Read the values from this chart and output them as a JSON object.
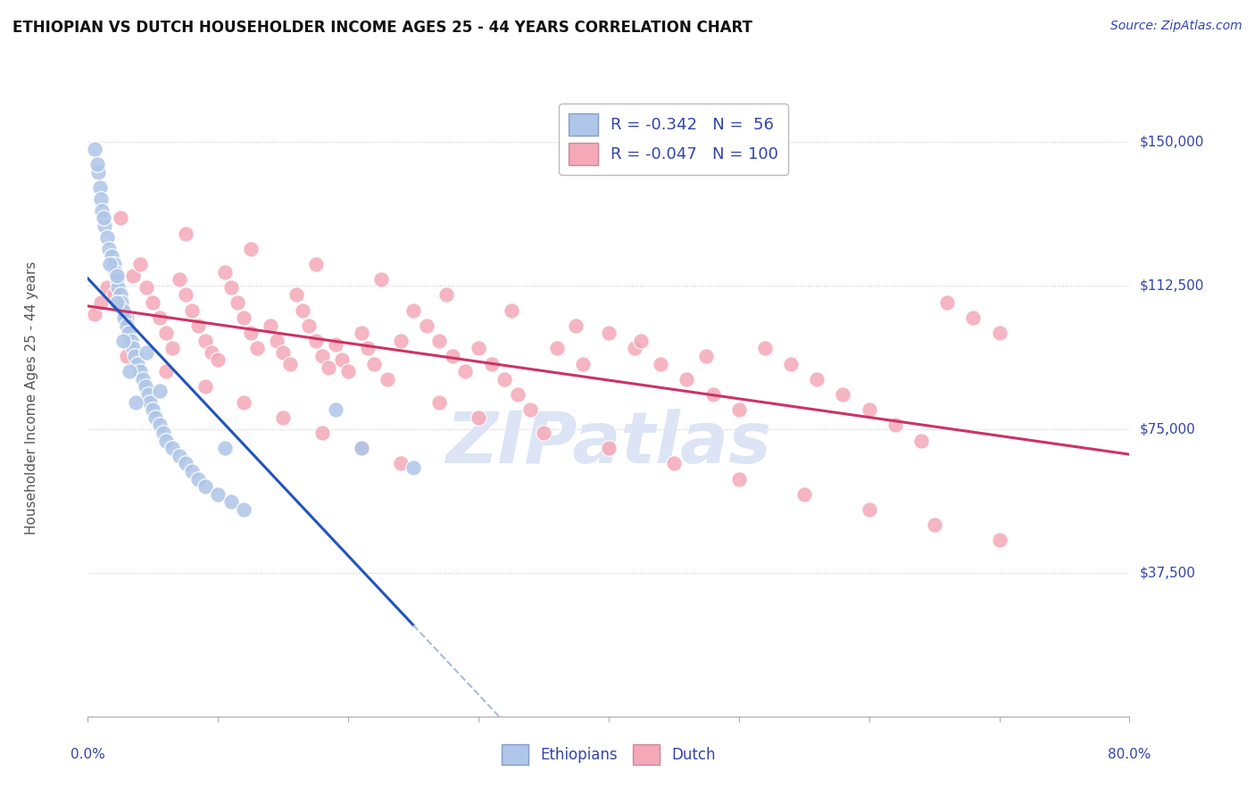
{
  "title": "ETHIOPIAN VS DUTCH HOUSEHOLDER INCOME AGES 25 - 44 YEARS CORRELATION CHART",
  "source": "Source: ZipAtlas.com",
  "ylabel": "Householder Income Ages 25 - 44 years",
  "ytick_labels": [
    "$37,500",
    "$75,000",
    "$112,500",
    "$150,000"
  ],
  "ytick_values": [
    37500,
    75000,
    112500,
    150000
  ],
  "ylim": [
    0,
    162000
  ],
  "xlim": [
    0.0,
    0.8
  ],
  "r_ethiopian": -0.342,
  "n_ethiopian": 56,
  "r_dutch": -0.047,
  "n_dutch": 100,
  "color_ethiopian": "#aec6e8",
  "color_dutch": "#f4a8b8",
  "color_ethiopian_line": "#2255bb",
  "color_dutch_line": "#cc3366",
  "color_dashed_line": "#aabbd8",
  "background_color": "#ffffff",
  "title_color": "#111111",
  "axis_label_color": "#3344aa",
  "watermark_text": "ZIPatlas",
  "watermark_color": "#dde4f5",
  "eth_x": [
    0.005,
    0.008,
    0.009,
    0.01,
    0.011,
    0.013,
    0.015,
    0.016,
    0.018,
    0.02,
    0.021,
    0.022,
    0.023,
    0.025,
    0.026,
    0.027,
    0.028,
    0.03,
    0.031,
    0.033,
    0.035,
    0.036,
    0.038,
    0.04,
    0.042,
    0.044,
    0.046,
    0.048,
    0.05,
    0.052,
    0.055,
    0.058,
    0.06,
    0.065,
    0.07,
    0.075,
    0.08,
    0.085,
    0.09,
    0.1,
    0.11,
    0.12,
    0.007,
    0.012,
    0.017,
    0.022,
    0.027,
    0.032,
    0.037,
    0.19,
    0.21,
    0.25,
    0.022,
    0.045,
    0.055,
    0.105
  ],
  "eth_y": [
    148000,
    142000,
    138000,
    135000,
    132000,
    128000,
    125000,
    122000,
    120000,
    118000,
    116000,
    114000,
    112000,
    110000,
    108000,
    106000,
    104000,
    102000,
    100000,
    98000,
    96000,
    94000,
    92000,
    90000,
    88000,
    86000,
    84000,
    82000,
    80000,
    78000,
    76000,
    74000,
    72000,
    70000,
    68000,
    66000,
    64000,
    62000,
    60000,
    58000,
    56000,
    54000,
    144000,
    130000,
    118000,
    108000,
    98000,
    90000,
    82000,
    80000,
    70000,
    65000,
    115000,
    95000,
    85000,
    70000
  ],
  "dutch_x": [
    0.005,
    0.01,
    0.015,
    0.02,
    0.025,
    0.03,
    0.035,
    0.04,
    0.045,
    0.05,
    0.055,
    0.06,
    0.065,
    0.07,
    0.075,
    0.08,
    0.085,
    0.09,
    0.095,
    0.1,
    0.105,
    0.11,
    0.115,
    0.12,
    0.125,
    0.13,
    0.14,
    0.145,
    0.15,
    0.155,
    0.16,
    0.165,
    0.17,
    0.175,
    0.18,
    0.185,
    0.19,
    0.195,
    0.2,
    0.21,
    0.215,
    0.22,
    0.23,
    0.24,
    0.25,
    0.26,
    0.27,
    0.28,
    0.29,
    0.3,
    0.31,
    0.32,
    0.33,
    0.34,
    0.36,
    0.38,
    0.4,
    0.42,
    0.44,
    0.46,
    0.48,
    0.5,
    0.52,
    0.54,
    0.56,
    0.58,
    0.6,
    0.62,
    0.64,
    0.66,
    0.68,
    0.7,
    0.03,
    0.06,
    0.09,
    0.12,
    0.15,
    0.18,
    0.21,
    0.24,
    0.27,
    0.3,
    0.35,
    0.4,
    0.45,
    0.5,
    0.55,
    0.6,
    0.65,
    0.7,
    0.025,
    0.075,
    0.125,
    0.175,
    0.225,
    0.275,
    0.325,
    0.375,
    0.425,
    0.475
  ],
  "dutch_y": [
    105000,
    108000,
    112000,
    110000,
    107000,
    104000,
    115000,
    118000,
    112000,
    108000,
    104000,
    100000,
    96000,
    114000,
    110000,
    106000,
    102000,
    98000,
    95000,
    93000,
    116000,
    112000,
    108000,
    104000,
    100000,
    96000,
    102000,
    98000,
    95000,
    92000,
    110000,
    106000,
    102000,
    98000,
    94000,
    91000,
    97000,
    93000,
    90000,
    100000,
    96000,
    92000,
    88000,
    98000,
    106000,
    102000,
    98000,
    94000,
    90000,
    96000,
    92000,
    88000,
    84000,
    80000,
    96000,
    92000,
    100000,
    96000,
    92000,
    88000,
    84000,
    80000,
    96000,
    92000,
    88000,
    84000,
    80000,
    76000,
    72000,
    108000,
    104000,
    100000,
    94000,
    90000,
    86000,
    82000,
    78000,
    74000,
    70000,
    66000,
    82000,
    78000,
    74000,
    70000,
    66000,
    62000,
    58000,
    54000,
    50000,
    46000,
    130000,
    126000,
    122000,
    118000,
    114000,
    110000,
    106000,
    102000,
    98000,
    94000
  ]
}
